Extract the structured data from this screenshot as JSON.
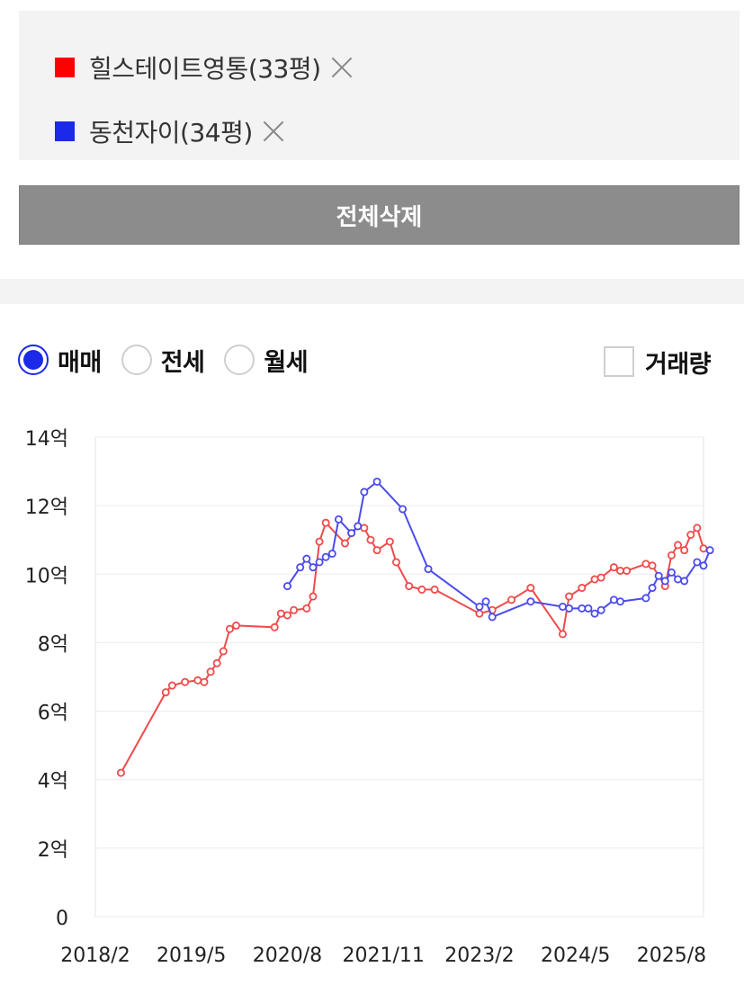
{
  "compare": {
    "items": [
      {
        "label": "힐스테이트영통(33평)",
        "color": "#ff0000"
      },
      {
        "label": "동천자이(34평)",
        "color": "#1a2ae8"
      }
    ],
    "delete_all_label": "전체삭제"
  },
  "filters": {
    "options": [
      {
        "label": "매매",
        "checked": true
      },
      {
        "label": "전세",
        "checked": false
      },
      {
        "label": "월세",
        "checked": false
      }
    ],
    "volume_label": "거래량",
    "volume_checked": false
  },
  "chart_data": {
    "type": "line",
    "title": "",
    "xlabel": "",
    "ylabel": "",
    "ylim": [
      0,
      14
    ],
    "y_ticks": [
      0,
      2,
      4,
      6,
      8,
      10,
      12,
      14
    ],
    "y_tick_labels": [
      "0",
      "2억",
      "4억",
      "6억",
      "8억",
      "10억",
      "12억",
      "14억"
    ],
    "xlim": [
      "2018-02",
      "2026-01"
    ],
    "x_ticks": [
      "2018-02",
      "2019-05",
      "2020-08",
      "2021-11",
      "2023-02",
      "2024-05",
      "2025-08"
    ],
    "x_tick_labels": [
      "2018/2",
      "2019/5",
      "2020/8",
      "2021/11",
      "2023/2",
      "2024/5",
      "2025/8"
    ],
    "grid": true,
    "legend": "none",
    "series": [
      {
        "name": "힐스테이트영통(33평)",
        "color": "#ef4b4b",
        "points": [
          [
            "2018-06",
            4.2
          ],
          [
            "2019-01",
            6.55
          ],
          [
            "2019-02",
            6.75
          ],
          [
            "2019-04",
            6.85
          ],
          [
            "2019-06",
            6.9
          ],
          [
            "2019-07",
            6.85
          ],
          [
            "2019-08",
            7.15
          ],
          [
            "2019-09",
            7.4
          ],
          [
            "2019-10",
            7.75
          ],
          [
            "2019-11",
            8.4
          ],
          [
            "2019-12",
            8.5
          ],
          [
            "2020-06",
            8.45
          ],
          [
            "2020-07",
            8.85
          ],
          [
            "2020-08",
            8.8
          ],
          [
            "2020-09",
            8.95
          ],
          [
            "2020-11",
            9.0
          ],
          [
            "2020-12",
            9.35
          ],
          [
            "2021-01",
            10.95
          ],
          [
            "2021-02",
            11.5
          ],
          [
            "2021-05",
            10.9
          ],
          [
            "2021-07",
            11.4
          ],
          [
            "2021-08",
            11.35
          ],
          [
            "2021-09",
            11.0
          ],
          [
            "2021-10",
            10.7
          ],
          [
            "2021-12",
            10.95
          ],
          [
            "2022-01",
            10.35
          ],
          [
            "2022-03",
            9.65
          ],
          [
            "2022-05",
            9.55
          ],
          [
            "2022-07",
            9.55
          ],
          [
            "2023-02",
            8.85
          ],
          [
            "2023-04",
            8.95
          ],
          [
            "2023-07",
            9.25
          ],
          [
            "2023-10",
            9.6
          ],
          [
            "2024-03",
            8.25
          ],
          [
            "2024-04",
            9.35
          ],
          [
            "2024-06",
            9.6
          ],
          [
            "2024-08",
            9.85
          ],
          [
            "2024-09",
            9.9
          ],
          [
            "2024-11",
            10.2
          ],
          [
            "2024-12",
            10.1
          ],
          [
            "2025-01",
            10.1
          ],
          [
            "2025-04",
            10.3
          ],
          [
            "2025-05",
            10.25
          ],
          [
            "2025-07",
            9.65
          ],
          [
            "2025-08",
            10.55
          ],
          [
            "2025-09",
            10.85
          ],
          [
            "2025-10",
            10.7
          ],
          [
            "2025-11",
            11.15
          ],
          [
            "2025-12",
            11.35
          ],
          [
            "2026-01",
            10.75
          ]
        ]
      },
      {
        "name": "동천자이(34평)",
        "color": "#4b4bee",
        "points": [
          [
            "2020-08",
            9.65
          ],
          [
            "2020-10",
            10.2
          ],
          [
            "2020-11",
            10.45
          ],
          [
            "2020-12",
            10.2
          ],
          [
            "2021-01",
            10.35
          ],
          [
            "2021-02",
            10.5
          ],
          [
            "2021-03",
            10.6
          ],
          [
            "2021-04",
            11.6
          ],
          [
            "2021-06",
            11.2
          ],
          [
            "2021-07",
            11.4
          ],
          [
            "2021-08",
            12.4
          ],
          [
            "2021-10",
            12.7
          ],
          [
            "2022-02",
            11.9
          ],
          [
            "2022-06",
            10.15
          ],
          [
            "2023-02",
            9.05
          ],
          [
            "2023-03",
            9.2
          ],
          [
            "2023-04",
            8.75
          ],
          [
            "2023-10",
            9.2
          ],
          [
            "2024-03",
            9.05
          ],
          [
            "2024-04",
            9.0
          ],
          [
            "2024-06",
            9.0
          ],
          [
            "2024-07",
            9.0
          ],
          [
            "2024-08",
            8.85
          ],
          [
            "2024-09",
            8.95
          ],
          [
            "2024-11",
            9.25
          ],
          [
            "2024-12",
            9.2
          ],
          [
            "2025-04",
            9.3
          ],
          [
            "2025-05",
            9.6
          ],
          [
            "2025-06",
            9.95
          ],
          [
            "2025-07",
            9.8
          ],
          [
            "2025-08",
            10.05
          ],
          [
            "2025-09",
            9.85
          ],
          [
            "2025-10",
            9.8
          ],
          [
            "2025-12",
            10.35
          ],
          [
            "2026-01",
            10.25
          ],
          [
            "2026-02",
            10.7
          ]
        ]
      }
    ]
  }
}
